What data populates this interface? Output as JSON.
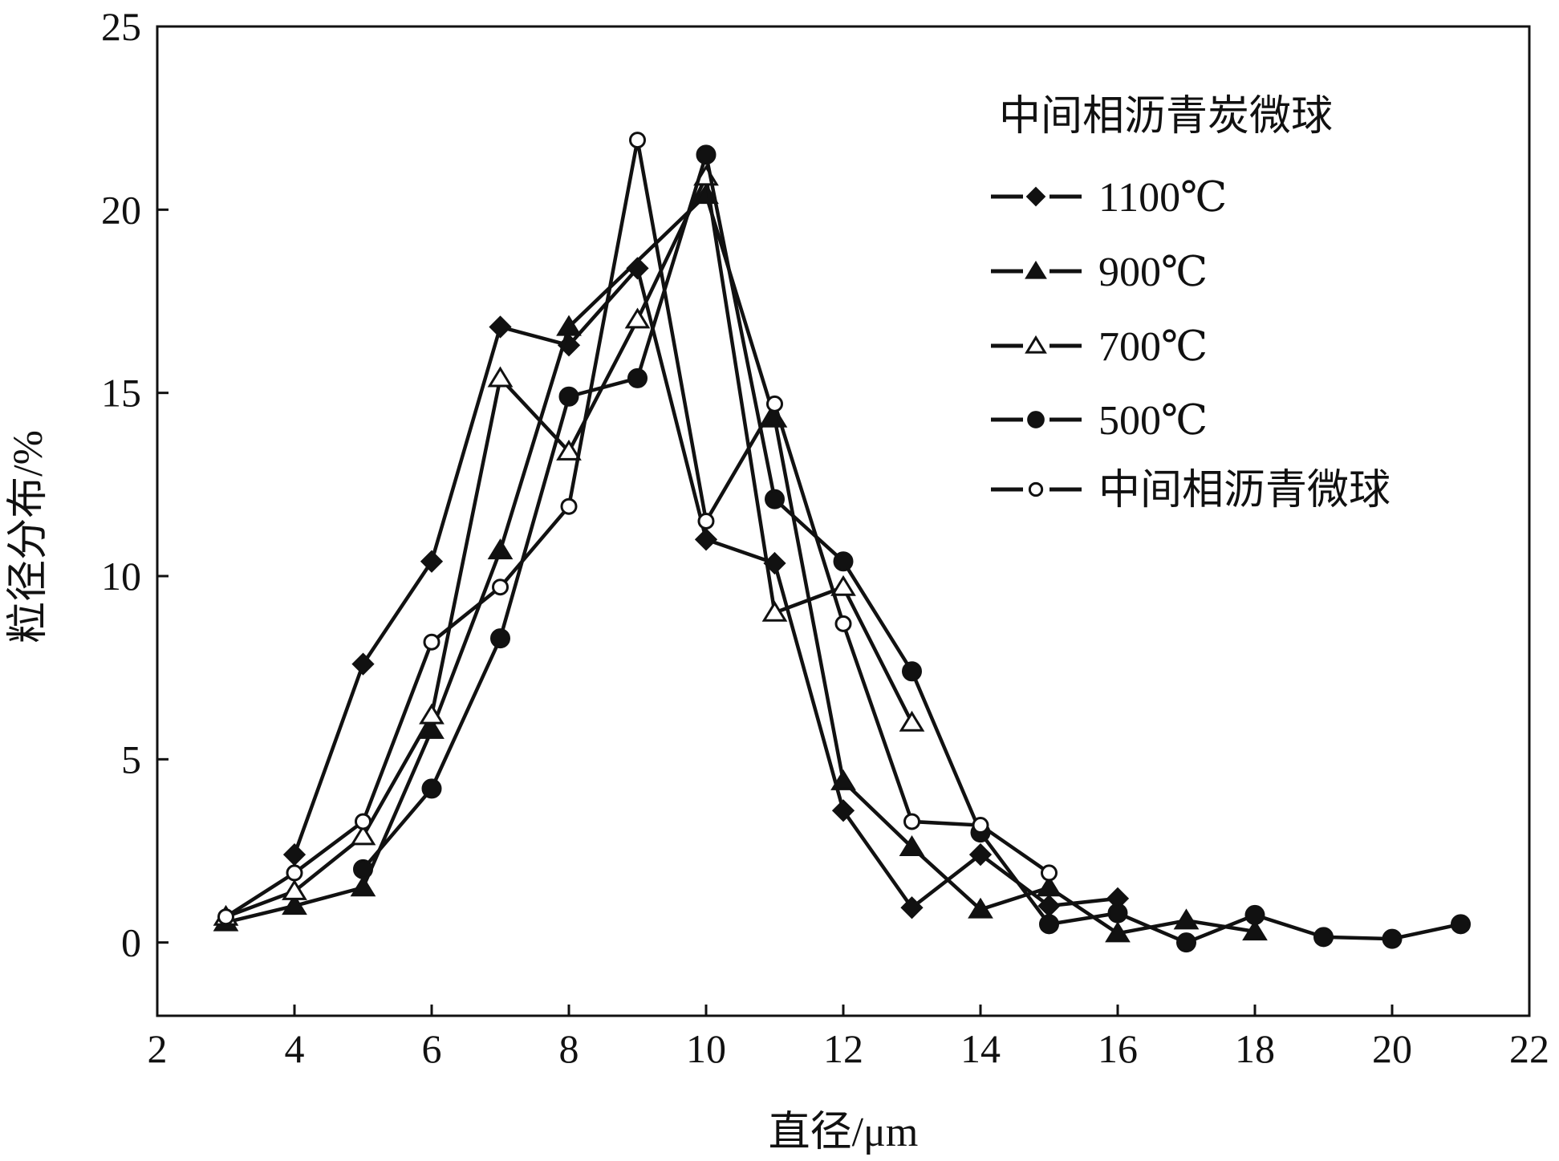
{
  "chart_data": {
    "type": "line",
    "title": "",
    "xlabel": "直径/μm",
    "ylabel": "粒径分布/%",
    "xlim": [
      2,
      22
    ],
    "ylim": [
      -2,
      25
    ],
    "xticks": [
      2,
      4,
      6,
      8,
      10,
      12,
      14,
      16,
      18,
      20,
      22
    ],
    "yticks": [
      0,
      5,
      10,
      15,
      20,
      25
    ],
    "grid": false,
    "legend_title": "中间相沥青炭微球",
    "legend_position": "top-right",
    "series": [
      {
        "name": "1100℃",
        "marker": "diamond-filled",
        "x": [
          4,
          5,
          6,
          7,
          8,
          9,
          10,
          11,
          12,
          13,
          14,
          15,
          16
        ],
        "y": [
          2.4,
          7.6,
          10.4,
          16.8,
          16.3,
          18.4,
          11.0,
          10.35,
          3.6,
          0.95,
          2.4,
          1.0,
          1.2
        ]
      },
      {
        "name": "900℃",
        "marker": "triangle-filled",
        "x": [
          3,
          4,
          5,
          6,
          7,
          8,
          10,
          11,
          12,
          13,
          14,
          15,
          16,
          17,
          18
        ],
        "y": [
          0.55,
          1.0,
          1.5,
          5.8,
          10.7,
          16.8,
          20.4,
          14.3,
          4.4,
          2.6,
          0.9,
          1.5,
          0.25,
          0.6,
          0.3
        ]
      },
      {
        "name": "700℃",
        "marker": "triangle-open",
        "x": [
          3,
          4,
          5,
          6,
          7,
          8,
          9,
          10,
          11,
          12,
          13
        ],
        "y": [
          0.7,
          1.4,
          2.9,
          6.2,
          15.4,
          13.4,
          17.0,
          20.9,
          9.0,
          9.7,
          6.0
        ]
      },
      {
        "name": "500℃",
        "marker": "circle-filled",
        "x": [
          5,
          6,
          7,
          8,
          9,
          10,
          11,
          12,
          13,
          14,
          15,
          16,
          17,
          18,
          19,
          20,
          21
        ],
        "y": [
          2.0,
          4.2,
          8.3,
          14.9,
          15.4,
          21.5,
          12.1,
          10.4,
          7.4,
          3.0,
          0.5,
          0.8,
          0.0,
          0.75,
          0.15,
          0.1,
          0.5
        ]
      },
      {
        "name": "中间相沥青微球",
        "marker": "circle-open",
        "x": [
          3,
          4,
          5,
          6,
          7,
          8,
          9,
          10,
          11,
          12,
          13,
          14,
          15
        ],
        "y": [
          0.7,
          1.9,
          3.3,
          8.2,
          9.7,
          11.9,
          21.9,
          11.5,
          14.7,
          8.7,
          3.3,
          3.2,
          1.9
        ]
      }
    ]
  }
}
